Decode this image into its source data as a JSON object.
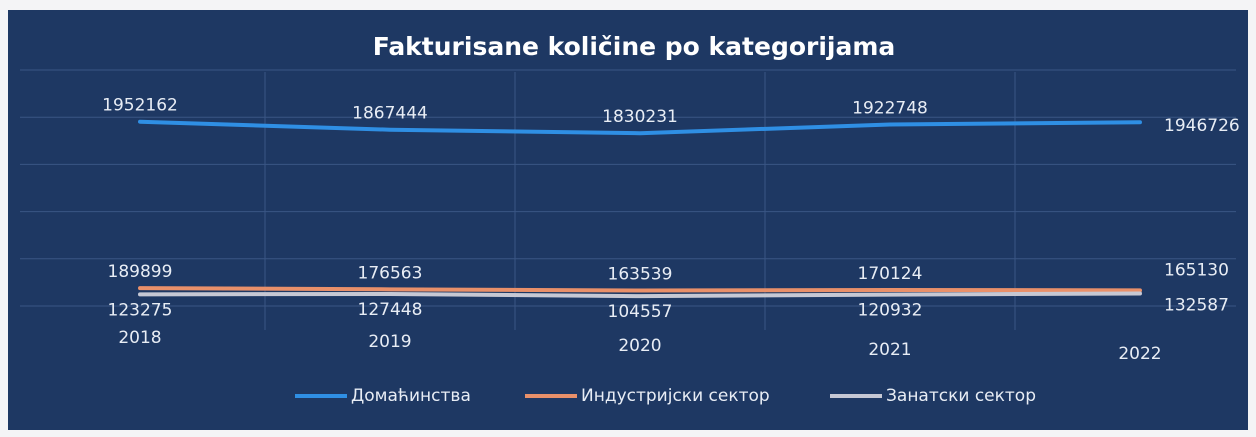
{
  "chart_data": {
    "type": "line",
    "title": "Fakturisane količine po kategorijama",
    "categories": [
      "2018",
      "2019",
      "2020",
      "2021",
      "2022"
    ],
    "series": [
      {
        "name": "Домаћинства",
        "color": "#2f8fe4",
        "values": [
          1952162,
          1867444,
          1830231,
          1922748,
          1946726
        ]
      },
      {
        "name": "Индустријски сектор",
        "color": "#e9906a",
        "values": [
          189899,
          176563,
          163539,
          170124,
          165130
        ]
      },
      {
        "name": "Занатски сектор",
        "color": "#c6c8d4",
        "values": [
          123275,
          127448,
          104557,
          120932,
          132587
        ]
      }
    ],
    "ylim": [
      0,
      2500000
    ],
    "yticks": [
      0,
      500000,
      1000000,
      1500000,
      2000000,
      2500000
    ],
    "grid": true,
    "legend": "bottom"
  }
}
